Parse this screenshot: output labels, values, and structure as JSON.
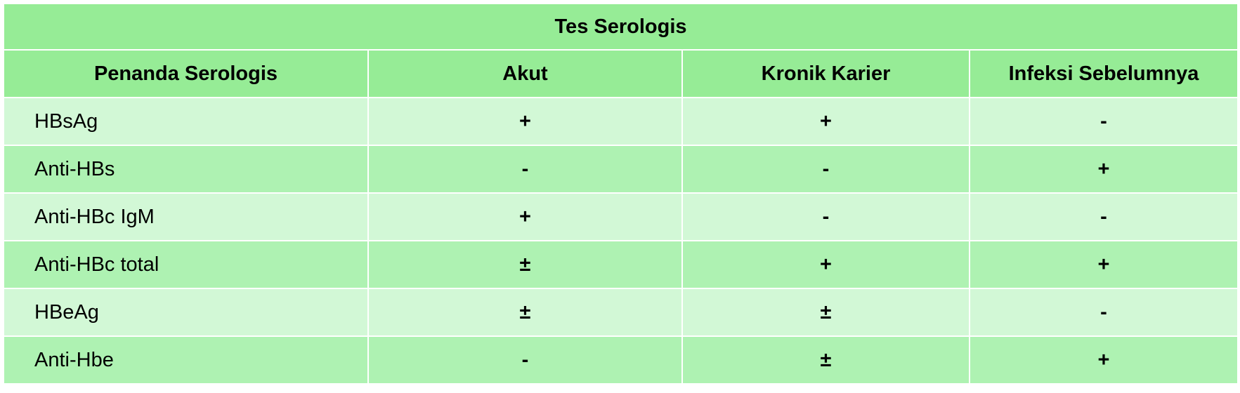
{
  "table": {
    "title": "Tes Serologis",
    "headers": [
      "Penanda Serologis",
      "Akut",
      "Kronik Karier",
      "Infeksi Sebelumnya"
    ],
    "rows": [
      {
        "marker": "HBsAg",
        "akut": "+",
        "kronik": "+",
        "sebelumnya": "-"
      },
      {
        "marker": "Anti-HBs",
        "akut": "-",
        "kronik": "-",
        "sebelumnya": "+"
      },
      {
        "marker": "Anti-HBc IgM",
        "akut": "+",
        "kronik": "-",
        "sebelumnya": "-"
      },
      {
        "marker": "Anti-HBc total",
        "akut": "±",
        "kronik": "+",
        "sebelumnya": "+"
      },
      {
        "marker": "HBeAg",
        "akut": "±",
        "kronik": "±",
        "sebelumnya": "-"
      },
      {
        "marker": "Anti-Hbe",
        "akut": "-",
        "kronik": "±",
        "sebelumnya": "+"
      }
    ]
  },
  "colors": {
    "header_bg": "#96ec96",
    "row_light": "#d2f8d6",
    "row_dark": "#aef2b2",
    "border": "#ffffff"
  }
}
